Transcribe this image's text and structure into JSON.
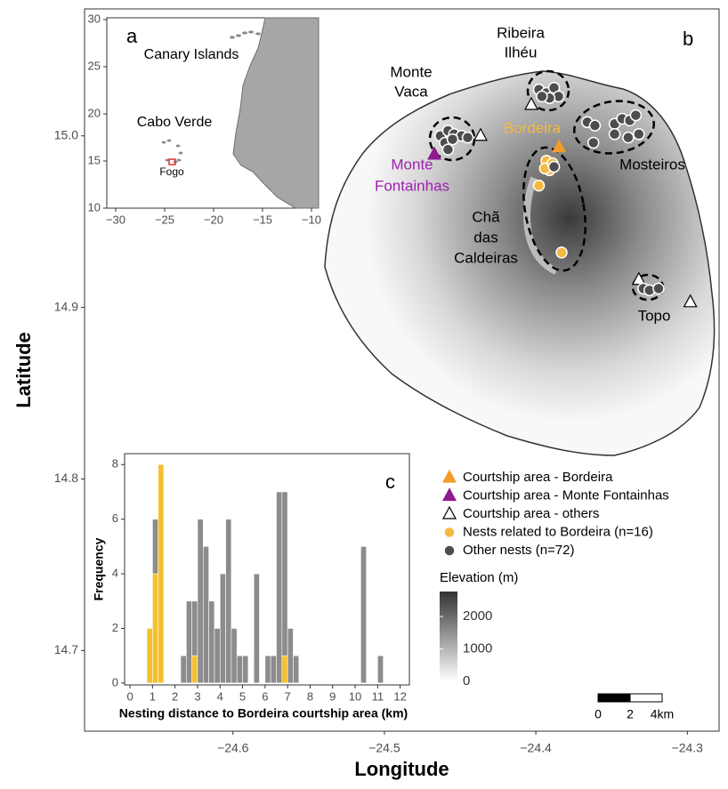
{
  "chart_data": [
    {
      "type": "map",
      "panel": "b",
      "xlabel": "Longitude",
      "ylabel": "Latitude",
      "xlim": [
        -24.698,
        -24.279
      ],
      "ylim": [
        14.653,
        15.074
      ],
      "xticks": [
        {
          "value": -24.6,
          "label": "−24.6"
        },
        {
          "value": -24.5,
          "label": "−24.5"
        },
        {
          "value": -24.4,
          "label": "−24.4"
        },
        {
          "value": -24.3,
          "label": "−24.3"
        }
      ],
      "yticks": [
        14.7,
        14.8,
        14.9,
        {
          "value": 15,
          "label": "15.0"
        }
      ],
      "series": [
        {
          "name": "Courtship area - Bordeira",
          "marker": "triangle",
          "color": "#f39c2b",
          "x": [
            -24.3847
          ],
          "y": [
            14.9933
          ]
        },
        {
          "name": "Courtship area - Monte Fontainhas",
          "marker": "triangle",
          "color": "#8e1a8e",
          "x": [
            -24.467
          ],
          "y": [
            14.989
          ]
        },
        {
          "name": "Courtship area - others",
          "marker": "triangle",
          "color": "#ffffff",
          "x": [
            -24.4365,
            -24.403,
            -24.332,
            -24.298
          ],
          "y": [
            15.0,
            15.018,
            14.916,
            14.903
          ]
        },
        {
          "name": "Nests related to Bordeira (n=16)",
          "marker": "circle",
          "color": "#f5b942",
          "x": [
            -24.393,
            -24.391,
            -24.398,
            -24.383,
            -24.394,
            -24.389
          ],
          "y": [
            14.9855,
            14.98,
            14.971,
            14.932,
            14.981,
            14.984
          ]
        },
        {
          "name": "Other nests (n=72)",
          "marker": "circle",
          "color": "#4d4d4d",
          "x": [
            -24.463,
            -24.458,
            -24.454,
            -24.449,
            -24.445,
            -24.46,
            -24.455,
            -24.458,
            -24.398,
            -24.393,
            -24.388,
            -24.385,
            -24.391,
            -24.396,
            -24.366,
            -24.361,
            -24.348,
            -24.343,
            -24.338,
            -24.332,
            -24.348,
            -24.362,
            -24.339,
            -24.334,
            -24.329,
            -24.325,
            -24.319,
            -24.388
          ],
          "y": [
            15.0,
            15.003,
            15.001,
            15.0,
            14.999,
            14.996,
            14.998,
            14.992,
            15.027,
            15.025,
            15.028,
            15.023,
            15.022,
            15.023,
            15.008,
            15.006,
            15.007,
            15.01,
            15.009,
            15.001,
            15.001,
            14.996,
            14.999,
            15.012,
            14.911,
            14.91,
            14.911,
            14.982
          ]
        }
      ],
      "annotations": [
        {
          "text": [
            "Ribeira",
            "Ilhéu"
          ],
          "color": "#000000"
        },
        {
          "text": [
            "Monte",
            "Vaca"
          ],
          "color": "#000000"
        },
        {
          "text": [
            "Bordeira"
          ],
          "color": "#f5b942"
        },
        {
          "text": [
            "Monte",
            "Fontainhas"
          ],
          "color": "#a020b0"
        },
        {
          "text": [
            "Mosteiros"
          ],
          "color": "#000000"
        },
        {
          "text": [
            "Chã",
            "das",
            "Caldeiras"
          ],
          "color": "#000000"
        },
        {
          "text": [
            "Topo"
          ],
          "color": "#000000"
        }
      ],
      "colorbar": {
        "title": "Elevation (m)",
        "lim": [
          0,
          2770
        ],
        "ticks": [
          0,
          1000,
          2000
        ]
      },
      "scalebar": {
        "labels": [
          "0",
          "2",
          "4km"
        ]
      }
    },
    {
      "type": "map",
      "panel": "a",
      "xlim": [
        -30.91,
        -9.27
      ],
      "ylim": [
        10,
        30.19
      ],
      "xticks": [
        {
          "value": -30,
          "label": "−30"
        },
        {
          "value": -25,
          "label": "−25"
        },
        {
          "value": -20,
          "label": "−20"
        },
        {
          "value": -15,
          "label": "−15"
        },
        {
          "value": -10,
          "label": "−10"
        }
      ],
      "yticks": [
        10,
        15,
        20,
        25,
        30
      ],
      "annotations": [
        {
          "text": [
            "Canary Islands"
          ],
          "color": "#000000"
        },
        {
          "text": [
            "Cabo Verde"
          ],
          "color": "#000000"
        },
        {
          "text": [
            "Fogo"
          ],
          "color": "#000000"
        }
      ]
    },
    {
      "type": "histogram",
      "panel": "c",
      "xlabel": "Nesting distance to Bordeira courtship area (km)",
      "ylabel": "Frequency",
      "xlim": [
        -0.24,
        12.41
      ],
      "ylim": [
        -0.07,
        8.4
      ],
      "xticks": [
        0,
        1,
        2,
        3,
        4,
        5,
        6,
        7,
        8,
        9,
        10,
        11,
        12
      ],
      "yticks": [
        0,
        2,
        4,
        6,
        8
      ],
      "bins": [
        0.75,
        1,
        1.25,
        1.5,
        1.75,
        2,
        2.25,
        2.5,
        2.75,
        3,
        3.25,
        3.5,
        3.75,
        4,
        4.25,
        4.5,
        4.75,
        5,
        5.25,
        5.5,
        5.75,
        6,
        6.25,
        6.5,
        6.75,
        7,
        7.25,
        7.5,
        7.75,
        8,
        8.25,
        8.5,
        8.75,
        9,
        9.25,
        9.5,
        9.75,
        10,
        10.25,
        10.5,
        10.75,
        11,
        11.25
      ],
      "series": [
        {
          "color": "#f5c02f",
          "values": [
            2,
            4,
            8,
            0,
            0,
            0,
            0,
            0,
            1,
            0,
            0,
            0,
            0,
            0,
            0,
            0,
            0,
            0,
            0,
            0,
            0,
            0,
            0,
            0,
            1,
            0,
            0,
            0,
            0,
            0,
            0,
            0,
            0,
            0,
            0,
            0,
            0,
            0,
            0,
            0,
            0,
            0
          ]
        },
        {
          "color": "#8c8c8c",
          "values": [
            0,
            2,
            0,
            0,
            0,
            0,
            1,
            3,
            2,
            6,
            5,
            3,
            2,
            4,
            6,
            2,
            1,
            1,
            0,
            4,
            0,
            1,
            1,
            7,
            6,
            2,
            1,
            0,
            0,
            0,
            0,
            0,
            0,
            0,
            0,
            0,
            0,
            0,
            5,
            0,
            0,
            1
          ]
        }
      ]
    }
  ]
}
